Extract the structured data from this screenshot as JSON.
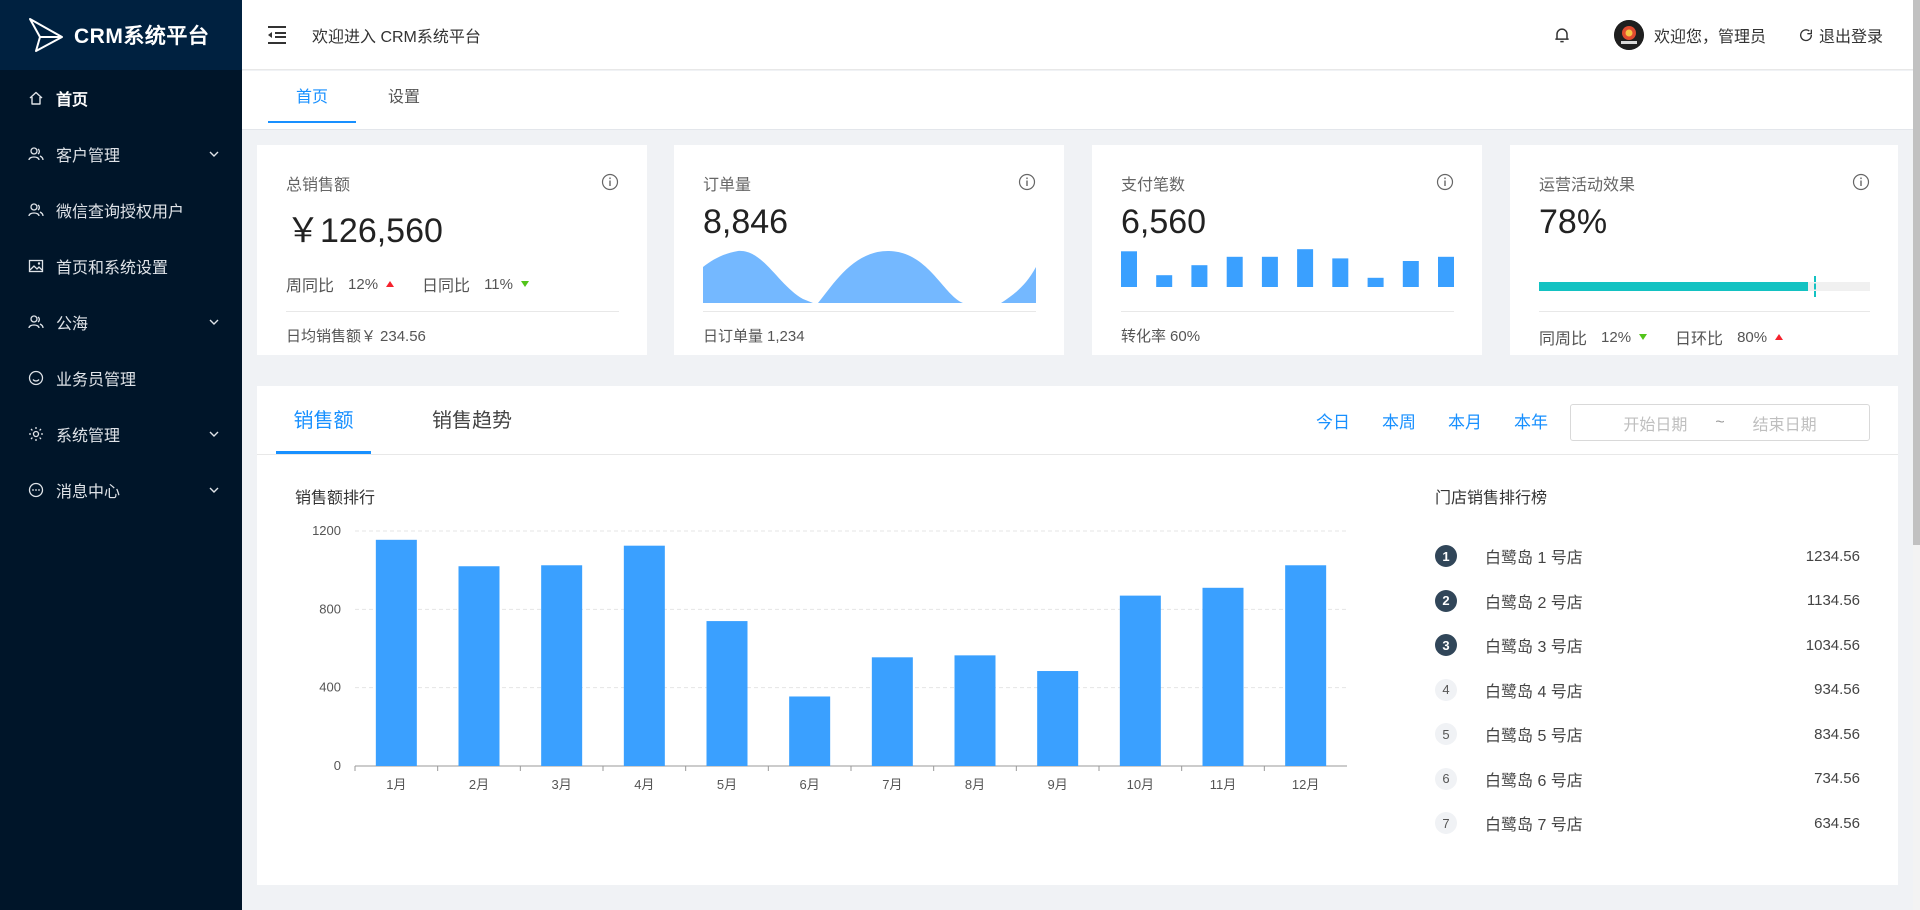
{
  "app": {
    "logo_text": "CRM系统平台"
  },
  "sidebar": {
    "items": [
      {
        "label": "首页",
        "icon": "home-icon",
        "has_submenu": false,
        "active": true
      },
      {
        "label": "客户管理",
        "icon": "users-icon",
        "has_submenu": true
      },
      {
        "label": "微信查询授权用户",
        "icon": "users-icon",
        "has_submenu": false
      },
      {
        "label": "首页和系统设置",
        "icon": "image-icon",
        "has_submenu": false
      },
      {
        "label": "公海",
        "icon": "users-icon",
        "has_submenu": true
      },
      {
        "label": "业务员管理",
        "icon": "smile-icon",
        "has_submenu": false
      },
      {
        "label": "系统管理",
        "icon": "gear-icon",
        "has_submenu": true
      },
      {
        "label": "消息中心",
        "icon": "message-icon",
        "has_submenu": true
      }
    ]
  },
  "header": {
    "title": "欢迎进入 CRM系统平台",
    "welcome": "欢迎您，管理员",
    "logout": "退出登录"
  },
  "top_tabs": {
    "home": "首页",
    "settings": "设置"
  },
  "cards": {
    "sales": {
      "title": "总销售额",
      "value": "￥126,560",
      "wow_label": "周同比",
      "wow_value": "12%",
      "dod_label": "日同比",
      "dod_value": "11%",
      "foot_label": "日均销售额￥",
      "foot_value": "234.56"
    },
    "orders": {
      "title": "订单量",
      "value": "8,846",
      "foot_label": "日订单量",
      "foot_value": "1,234"
    },
    "payments": {
      "title": "支付笔数",
      "value": "6,560",
      "foot_label": "转化率",
      "foot_value": "60%"
    },
    "campaign": {
      "title": "运营活动效果",
      "value": "78%",
      "progress": 0.78,
      "wow_label": "同周比",
      "wow_value": "12%",
      "dod_label": "日环比",
      "dod_value": "80%"
    }
  },
  "main": {
    "tabs": {
      "sales": "销售额",
      "trend": "销售趋势"
    },
    "ranges": [
      "今日",
      "本周",
      "本月",
      "本年"
    ],
    "date_start_placeholder": "开始日期",
    "date_sep": "~",
    "date_end_placeholder": "结束日期",
    "chart_title": "销售额排行",
    "rank_title": "门店销售排行榜"
  },
  "chart_data": {
    "type": "bar",
    "categories": [
      "1月",
      "2月",
      "3月",
      "4月",
      "5月",
      "6月",
      "7月",
      "8月",
      "9月",
      "10月",
      "11月",
      "12月"
    ],
    "values": [
      1155,
      1020,
      1025,
      1125,
      740,
      355,
      555,
      565,
      485,
      870,
      910,
      1025
    ],
    "ylim": [
      0,
      1200
    ],
    "yticks": [
      0,
      400,
      800,
      1200
    ],
    "color": "#3aa0ff",
    "grid": true
  },
  "rankings": [
    {
      "rank": "1",
      "name": "白鹭岛 1 号店",
      "value": "1234.56"
    },
    {
      "rank": "2",
      "name": "白鹭岛 2 号店",
      "value": "1134.56"
    },
    {
      "rank": "3",
      "name": "白鹭岛 3 号店",
      "value": "1034.56"
    },
    {
      "rank": "4",
      "name": "白鹭岛 4 号店",
      "value": "934.56"
    },
    {
      "rank": "5",
      "name": "白鹭岛 5 号店",
      "value": "834.56"
    },
    {
      "rank": "6",
      "name": "白鹭岛 6 号店",
      "value": "734.56"
    },
    {
      "rank": "7",
      "name": "白鹭岛 7 号店",
      "value": "634.56"
    }
  ],
  "mini_bars": [
    0.85,
    0.28,
    0.52,
    0.72,
    0.72,
    0.9,
    0.68,
    0.22,
    0.62,
    0.72
  ],
  "colors": {
    "sidebar_bg": "#001529",
    "accent": "#1890ff",
    "progress": "#13c2c2",
    "bar": "#3aa0ff",
    "area": "#74b8ff"
  }
}
